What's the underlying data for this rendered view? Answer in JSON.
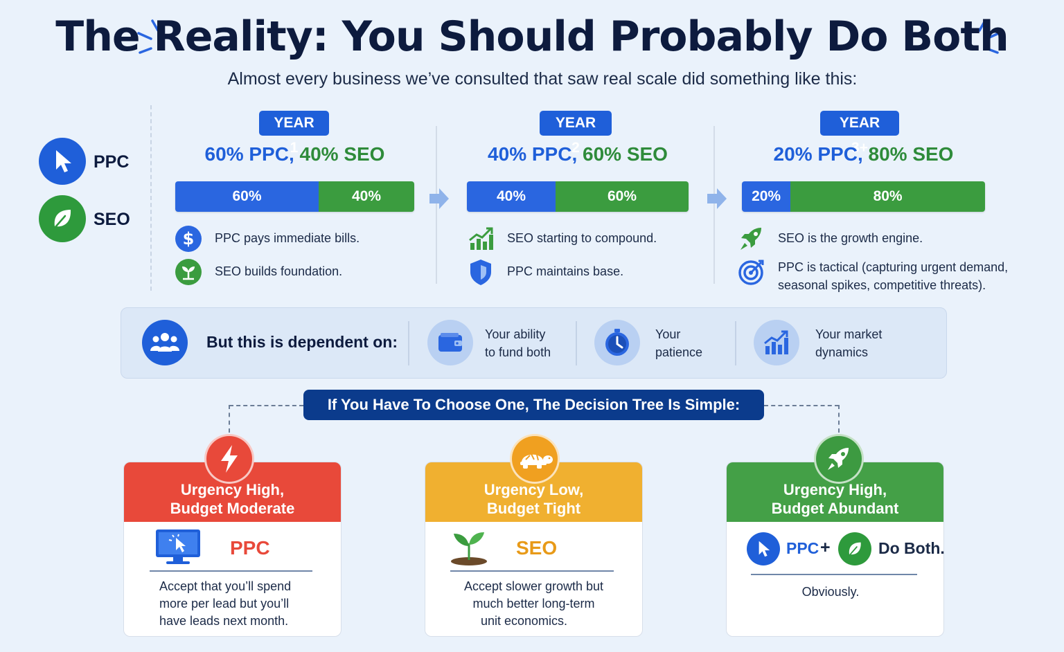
{
  "header": {
    "title": "The Reality: You Should Probably Do Both",
    "subtitle": "Almost every business we’ve consulted that saw real scale did something like this:"
  },
  "legend": [
    {
      "label": "PPC",
      "icon": "cursor-icon",
      "color": "#1f5fd9"
    },
    {
      "label": "SEO",
      "icon": "leaf-icon",
      "color": "#2e9a3c"
    }
  ],
  "years": [
    {
      "badge": "YEAR 1",
      "ppc_text": "60% PPC,",
      "seo_text": "40% SEO",
      "ppc_pct": 60,
      "seo_pct": 40,
      "ppc_label": "60%",
      "seo_label": "40%",
      "points": [
        {
          "icon": "dollar-icon",
          "text": "PPC pays immediate bills."
        },
        {
          "icon": "sprout-icon",
          "text": "SEO builds foundation."
        }
      ]
    },
    {
      "badge": "YEAR 2",
      "ppc_text": "40% PPC,",
      "seo_text": "60% SEO",
      "ppc_pct": 40,
      "seo_pct": 60,
      "ppc_label": "40%",
      "seo_label": "60%",
      "points": [
        {
          "icon": "growth-chart-icon",
          "text": "SEO starting to compound."
        },
        {
          "icon": "shield-icon",
          "text": "PPC maintains base."
        }
      ]
    },
    {
      "badge": "YEAR 3+",
      "ppc_text": "20% PPC,",
      "seo_text": "80% SEO",
      "ppc_pct": 20,
      "seo_pct": 80,
      "ppc_label": "20%",
      "seo_label": "80%",
      "points": [
        {
          "icon": "rocket-icon",
          "text": "SEO is the growth engine."
        },
        {
          "icon": "target-icon",
          "text": "PPC is tactical (capturing urgent demand,",
          "text2": "seasonal spikes, competitive threats)."
        }
      ]
    }
  ],
  "dependency": {
    "title": "But this is dependent on:",
    "items": [
      {
        "icon": "wallet-icon",
        "line1": "Your ability",
        "line2": "to fund both"
      },
      {
        "icon": "clock-icon",
        "line1": "Your",
        "line2": "patience"
      },
      {
        "icon": "market-chart-icon",
        "line1": "Your market",
        "line2": "dynamics"
      }
    ]
  },
  "decision_tree": {
    "banner": "If You Have To Choose One, The Decision Tree Is Simple:",
    "cards": [
      {
        "icon": "lightning-icon",
        "color": "#e8493a",
        "head1": "Urgency High,",
        "head2": "Budget Moderate",
        "choice": "PPC",
        "desc": [
          "Accept that you’ll spend",
          "more per lead but you’ll",
          "have leads next month."
        ]
      },
      {
        "icon": "turtle-icon",
        "color": "#f0b030",
        "head1": "Urgency Low,",
        "head2": "Budget Tight",
        "choice": "SEO",
        "desc": [
          "Accept slower growth but",
          "much better long-term",
          "unit economics."
        ]
      },
      {
        "icon": "rocket-icon",
        "color": "#44a047",
        "head1": "Urgency High,",
        "head2": "Budget Abundant",
        "choice_ppc": "PPC",
        "plus": "+",
        "choice": "Do Both.",
        "desc": [
          "Obviously."
        ]
      }
    ]
  }
}
